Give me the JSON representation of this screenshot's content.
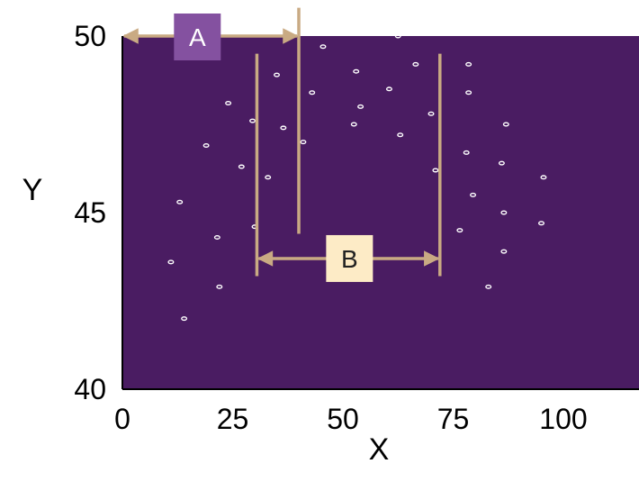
{
  "chart_data": {
    "type": "scatter",
    "xlabel": "X",
    "ylabel": "Y",
    "xlim": [
      0,
      115
    ],
    "ylim": [
      40,
      50
    ],
    "x_ticks": [
      "0",
      "25",
      "50",
      "75",
      "100"
    ],
    "y_ticks": [
      "40",
      "45",
      "50"
    ],
    "grid": false,
    "colors": {
      "plot_background": "#4a1c62",
      "points": "#ffffff",
      "bracket": "#c9aa83",
      "label_a_fill": "#8451a0",
      "label_a_text": "#ffffff",
      "label_b_fill": "#fdebc6",
      "label_b_text": "#222222"
    },
    "points": [
      {
        "x": 62.5,
        "y": 50.0
      },
      {
        "x": 45.5,
        "y": 49.7
      },
      {
        "x": 66.5,
        "y": 49.2
      },
      {
        "x": 78.5,
        "y": 49.2
      },
      {
        "x": 35.0,
        "y": 48.9
      },
      {
        "x": 53.0,
        "y": 49.0
      },
      {
        "x": 60.5,
        "y": 48.5
      },
      {
        "x": 43.0,
        "y": 48.4
      },
      {
        "x": 78.5,
        "y": 48.4
      },
      {
        "x": 24.0,
        "y": 48.1
      },
      {
        "x": 54.0,
        "y": 48.0
      },
      {
        "x": 70.0,
        "y": 47.8
      },
      {
        "x": 29.5,
        "y": 47.6
      },
      {
        "x": 52.5,
        "y": 47.5
      },
      {
        "x": 87.0,
        "y": 47.5
      },
      {
        "x": 36.5,
        "y": 47.4
      },
      {
        "x": 63.0,
        "y": 47.2
      },
      {
        "x": 41.0,
        "y": 47.0
      },
      {
        "x": 19.0,
        "y": 46.9
      },
      {
        "x": 78.0,
        "y": 46.7
      },
      {
        "x": 27.0,
        "y": 46.3
      },
      {
        "x": 86.0,
        "y": 46.4
      },
      {
        "x": 71.0,
        "y": 46.2
      },
      {
        "x": 33.0,
        "y": 46.0
      },
      {
        "x": 95.5,
        "y": 46.0
      },
      {
        "x": 79.5,
        "y": 45.5
      },
      {
        "x": 13.0,
        "y": 45.3
      },
      {
        "x": 86.5,
        "y": 45.0
      },
      {
        "x": 30.0,
        "y": 44.6
      },
      {
        "x": 95.0,
        "y": 44.7
      },
      {
        "x": 76.5,
        "y": 44.5
      },
      {
        "x": 21.5,
        "y": 44.3
      },
      {
        "x": 86.5,
        "y": 43.9
      },
      {
        "x": 11.0,
        "y": 43.6
      },
      {
        "x": 22.0,
        "y": 42.9
      },
      {
        "x": 83.0,
        "y": 42.9
      },
      {
        "x": 14.0,
        "y": 42.0
      }
    ],
    "annotations": [
      {
        "label": "A",
        "x_start": 0,
        "x_end": 40,
        "y": 50.0,
        "vline_x": 40,
        "vline_y_range": [
          44.4,
          50.8
        ],
        "label_x": 17,
        "label_y": 50.0
      },
      {
        "label": "B",
        "x_start": 30.5,
        "x_end": 72,
        "y": 43.7,
        "vlines_x": [
          30.5,
          72
        ],
        "vline_y_range": [
          43.2,
          49.5
        ],
        "label_x": 51.5,
        "label_y": 43.7
      }
    ]
  }
}
